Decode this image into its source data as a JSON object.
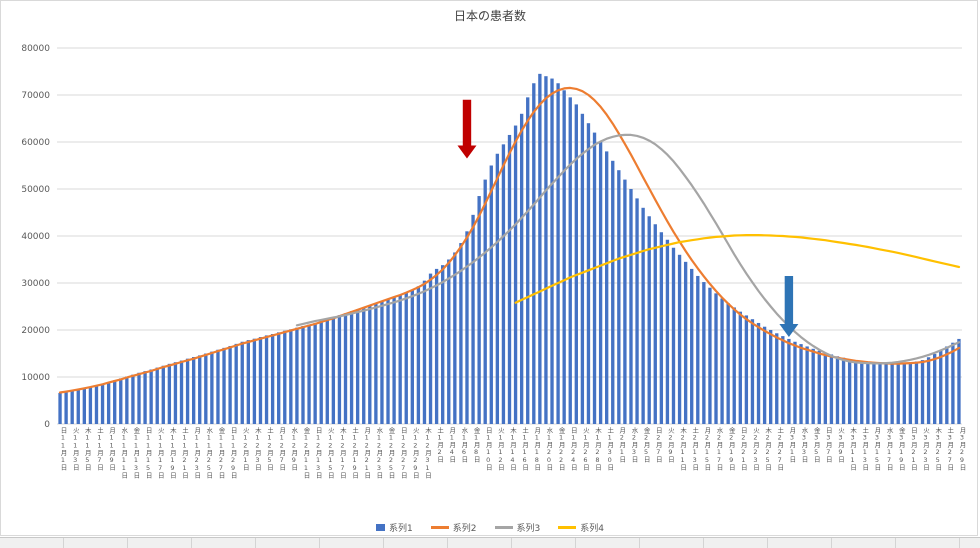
{
  "chart": {
    "title": "日本の患者数",
    "colors": {
      "series1": "#4472c4",
      "series2": "#ed7d31",
      "series3": "#a5a5a5",
      "series4": "#ffc000",
      "grid": "#d9d9d9",
      "axis_text": "#595959",
      "red_arrow": "#c00000",
      "blue_arrow": "#2e74b5"
    }
  },
  "chart_data": {
    "type": "combo",
    "title": "日本の患者数",
    "xlabel": "",
    "ylabel": "",
    "ylim": [
      0,
      80000
    ],
    "y_step": 10000,
    "y_tick_labels": [
      "0",
      "10000",
      "20000",
      "30000",
      "40000",
      "50000",
      "60000",
      "70000",
      "80000"
    ],
    "grid": true,
    "legend_position": "bottom",
    "n_days": 149,
    "tick_interval_days": 2,
    "x_tick_labels": [
      "日11月1日",
      "火11月3日",
      "木11月5日",
      "土11月7日",
      "月11月9日",
      "水11月11日",
      "金11月13日",
      "日11月15日",
      "火11月17日",
      "木11月19日",
      "土11月21日",
      "月11月23日",
      "水11月25日",
      "金11月27日",
      "日11月29日",
      "火12月1日",
      "木12月3日",
      "土12月5日",
      "月12月7日",
      "水12月9日",
      "金12月11日",
      "日12月13日",
      "火12月15日",
      "木12月17日",
      "土12月19日",
      "月12月21日",
      "水12月23日",
      "金12月25日",
      "日12月27日",
      "火12月29日",
      "木12月31日",
      "土1月2日",
      "月1月4日",
      "水1月6日",
      "金1月8日",
      "日1月10日",
      "火1月12日",
      "木1月14日",
      "土1月16日",
      "月1月18日",
      "水1月20日",
      "金1月22日",
      "日1月24日",
      "火1月26日",
      "木1月28日",
      "土1月30日",
      "月2月1日",
      "水2月3日",
      "金2月5日",
      "日2月7日",
      "火2月9日",
      "木2月11日",
      "土2月13日",
      "月2月15日",
      "水2月17日",
      "金2月19日",
      "日2月21日",
      "火2月23日",
      "木2月25日",
      "土2月27日",
      "月3月1日",
      "水3月3日",
      "金3月5日",
      "日3月7日",
      "火3月9日",
      "木3月11日",
      "土3月13日",
      "月3月15日",
      "水3月17日",
      "金3月19日",
      "日3月21日",
      "火3月23日",
      "木3月25日",
      "土3月27日",
      "月3月29日"
    ],
    "series": [
      {
        "name": "系列1",
        "type": "bar",
        "color": "#4472c4",
        "start": 0,
        "values": [
          6600,
          6800,
          7100,
          7300,
          7600,
          7900,
          8200,
          8550,
          8900,
          9300,
          9700,
          10100,
          10500,
          10900,
          11250,
          11600,
          12000,
          12400,
          12800,
          13150,
          13500,
          13900,
          14250,
          14600,
          15000,
          15400,
          15800,
          16200,
          16600,
          17050,
          17500,
          17850,
          18150,
          18500,
          18850,
          19150,
          19500,
          19850,
          20150,
          20500,
          20850,
          21150,
          21500,
          21900,
          22300,
          22700,
          23150,
          23550,
          24000,
          24400,
          24800,
          25200,
          25650,
          26050,
          26500,
          26950,
          27400,
          28000,
          28500,
          29300,
          30500,
          32000,
          33000,
          33800,
          35000,
          36500,
          38500,
          41000,
          44500,
          48500,
          52000,
          55000,
          57500,
          59500,
          61500,
          63500,
          66000,
          69500,
          72500,
          74500,
          74000,
          73500,
          72500,
          71000,
          69500,
          68000,
          66000,
          64000,
          62000,
          60000,
          58000,
          56000,
          54000,
          52000,
          50000,
          48000,
          46000,
          44200,
          42500,
          40800,
          39200,
          37500,
          36000,
          34500,
          33000,
          31500,
          30200,
          29000,
          27800,
          26700,
          25700,
          24800,
          23900,
          23100,
          22300,
          21500,
          20700,
          20000,
          19300,
          18700,
          18100,
          17500,
          17000,
          16500,
          16000,
          15600,
          15200,
          14800,
          14400,
          14100,
          13800,
          13600,
          13400,
          13300,
          13200,
          13100,
          13050,
          13000,
          13000,
          13050,
          13100,
          13300,
          13600,
          14200,
          14900,
          15700,
          16500,
          17300,
          18100
        ]
      },
      {
        "name": "系列2",
        "type": "line",
        "color": "#ed7d31",
        "start": 0,
        "values": [
          6700,
          6900,
          7100,
          7350,
          7600,
          7850,
          8150,
          8450,
          8800,
          9150,
          9500,
          9900,
          10250,
          10600,
          10950,
          11300,
          11700,
          12100,
          12450,
          12800,
          13200,
          13550,
          13900,
          14300,
          14700,
          15100,
          15500,
          15900,
          16300,
          16700,
          17100,
          17450,
          17800,
          18150,
          18500,
          18850,
          19200,
          19550,
          19900,
          20250,
          20600,
          20950,
          21300,
          21700,
          22100,
          22500,
          22950,
          23400,
          23850,
          24300,
          24750,
          25200,
          25650,
          26100,
          26550,
          27000,
          27450,
          27950,
          28500,
          29100,
          29800,
          30700,
          31700,
          32900,
          34300,
          35900,
          37700,
          39700,
          41900,
          44300,
          46900,
          49600,
          52300,
          55000,
          57600,
          60100,
          62400,
          64500,
          66400,
          68000,
          69300,
          70300,
          71000,
          71400,
          71500,
          71300,
          70800,
          70000,
          68900,
          67500,
          65800,
          63900,
          61800,
          59600,
          57300,
          54900,
          52500,
          50100,
          47700,
          45400,
          43100,
          40900,
          38800,
          36800,
          34900,
          33100,
          31400,
          29800,
          28300,
          26900,
          25600,
          24400,
          23300,
          22300,
          21400,
          20600,
          19800,
          19100,
          18400,
          17800,
          17200,
          16700,
          16200,
          15800,
          15400,
          15000,
          14650,
          14350,
          14100,
          13850,
          13650,
          13450,
          13300,
          13150,
          13050,
          12950,
          12900,
          12850,
          12850,
          12900,
          12950,
          13050,
          13200,
          13450,
          13800,
          14250,
          14800,
          15450,
          16200
        ]
      },
      {
        "name": "系列3",
        "type": "line",
        "color": "#a5a5a5",
        "start": 39,
        "values": [
          21000,
          21300,
          21600,
          21900,
          22150,
          22400,
          22650,
          22900,
          23200,
          23500,
          23800,
          24100,
          24450,
          24800,
          25150,
          25500,
          25900,
          26300,
          26750,
          27200,
          27700,
          28250,
          28850,
          29500,
          30200,
          30950,
          31750,
          32600,
          33500,
          34450,
          35450,
          36500,
          37600,
          38750,
          39950,
          41200,
          42500,
          43850,
          45250,
          46700,
          48200,
          49700,
          51100,
          52500,
          53900,
          55200,
          56400,
          57500,
          58500,
          59400,
          60100,
          60700,
          61100,
          61400,
          61500,
          61500,
          61300,
          60900,
          60300,
          59500,
          58500,
          57300,
          55900,
          54300,
          52600,
          50800,
          48900,
          46900,
          44800,
          42700,
          40500,
          38300,
          36100,
          34000,
          32000,
          30100,
          28300,
          26600,
          25000,
          23500,
          22100,
          20800,
          19600,
          18500,
          17500,
          16600,
          15800,
          15100,
          14500,
          14000,
          13600,
          13300,
          13100,
          13000,
          12950,
          12900,
          12900,
          12950,
          13050,
          13200,
          13400,
          13650,
          13950,
          14300,
          14700,
          15150,
          15650,
          16200,
          16800,
          17400
        ]
      },
      {
        "name": "系列4",
        "type": "line",
        "color": "#ffc000",
        "start": 75,
        "values": [
          25800,
          26400,
          27000,
          27600,
          28200,
          28800,
          29400,
          30000,
          30600,
          31200,
          31700,
          32200,
          32700,
          33200,
          33700,
          34200,
          34700,
          35200,
          35600,
          36000,
          36400,
          36800,
          37200,
          37500,
          37800,
          38100,
          38400,
          38700,
          38900,
          39100,
          39300,
          39500,
          39650,
          39800,
          39900,
          40000,
          40100,
          40150,
          40200,
          40200,
          40200,
          40150,
          40100,
          40050,
          40000,
          39900,
          39800,
          39700,
          39550,
          39400,
          39250,
          39100,
          38900,
          38700,
          38500,
          38300,
          38100,
          37900,
          37650,
          37400,
          37150,
          36900,
          36650,
          36400,
          36100,
          35800,
          35500,
          35200,
          34900,
          34600,
          34300,
          34000,
          33700,
          33400
        ]
      }
    ],
    "annotations": [
      {
        "name": "red-arrow",
        "type": "arrow-down",
        "color": "#c00000",
        "day_index": 67,
        "from_value": 69000,
        "to_value": 56500
      },
      {
        "name": "blue-arrow",
        "type": "arrow-down",
        "color": "#2e74b5",
        "day_index": 120,
        "from_value": 31500,
        "to_value": 18500
      }
    ]
  }
}
